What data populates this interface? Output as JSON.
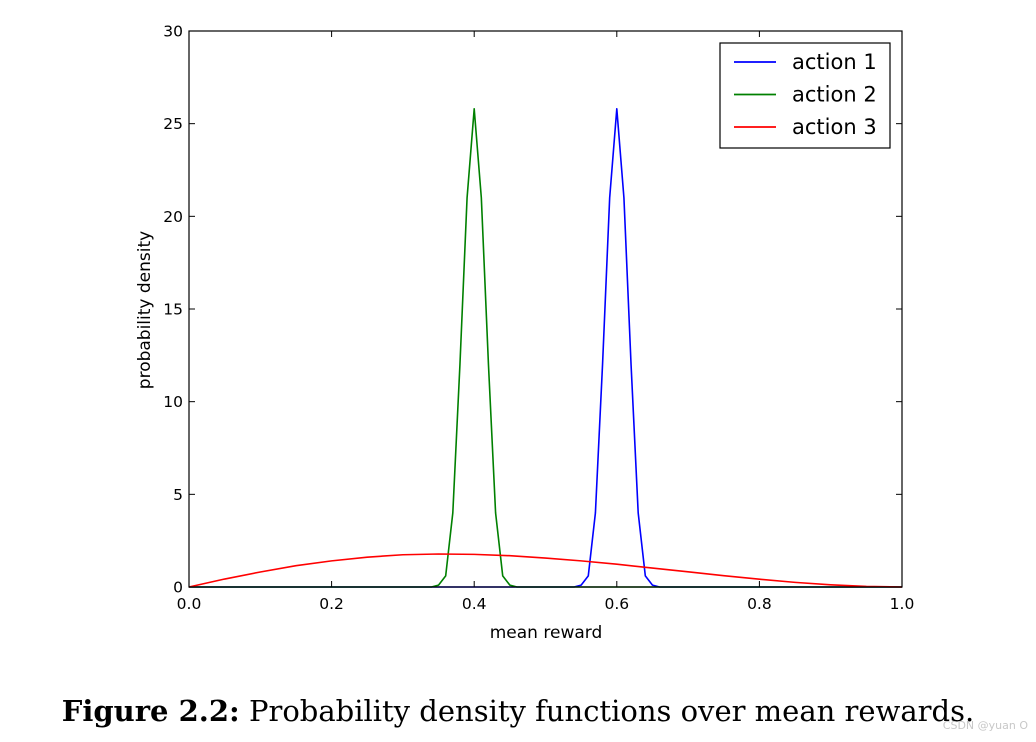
{
  "chart_data": {
    "type": "line",
    "title": "",
    "xlabel": "mean reward",
    "ylabel": "probability density",
    "xlim": [
      0.0,
      1.0
    ],
    "ylim": [
      0,
      30
    ],
    "xticks": [
      "0.0",
      "0.2",
      "0.4",
      "0.6",
      "0.8",
      "1.0"
    ],
    "yticks": [
      "0",
      "5",
      "10",
      "15",
      "20",
      "25",
      "30"
    ],
    "grid": false,
    "legend_position": "top-right",
    "series": [
      {
        "name": "action 1",
        "color": "#0000ff",
        "x": [
          0.0,
          0.54,
          0.55,
          0.56,
          0.57,
          0.58,
          0.59,
          0.6,
          0.61,
          0.62,
          0.63,
          0.64,
          0.65,
          0.66,
          1.0
        ],
        "y": [
          0,
          0,
          0.1,
          0.6,
          4.0,
          12.0,
          21.0,
          25.8,
          21.0,
          12.0,
          4.0,
          0.6,
          0.1,
          0,
          0
        ]
      },
      {
        "name": "action 2",
        "color": "#008000",
        "x": [
          0.0,
          0.34,
          0.35,
          0.36,
          0.37,
          0.38,
          0.39,
          0.4,
          0.41,
          0.42,
          0.43,
          0.44,
          0.45,
          0.46,
          1.0
        ],
        "y": [
          0,
          0,
          0.1,
          0.6,
          4.0,
          12.0,
          21.0,
          25.8,
          21.0,
          12.0,
          4.0,
          0.6,
          0.1,
          0,
          0
        ]
      },
      {
        "name": "action 3",
        "color": "#ff0000",
        "x": [
          0.0,
          0.05,
          0.1,
          0.15,
          0.2,
          0.25,
          0.3,
          0.35,
          0.4,
          0.45,
          0.5,
          0.55,
          0.6,
          0.65,
          0.7,
          0.75,
          0.8,
          0.85,
          0.9,
          0.95,
          1.0
        ],
        "y": [
          0,
          0.43,
          0.81,
          1.15,
          1.41,
          1.61,
          1.74,
          1.78,
          1.76,
          1.69,
          1.56,
          1.41,
          1.23,
          1.02,
          0.82,
          0.61,
          0.42,
          0.25,
          0.12,
          0.03,
          0
        ]
      }
    ]
  },
  "figure": {
    "label": "Figure 2.2:",
    "text": "Probability density functions over mean rewards."
  },
  "watermark": "CSDN @yuan O"
}
